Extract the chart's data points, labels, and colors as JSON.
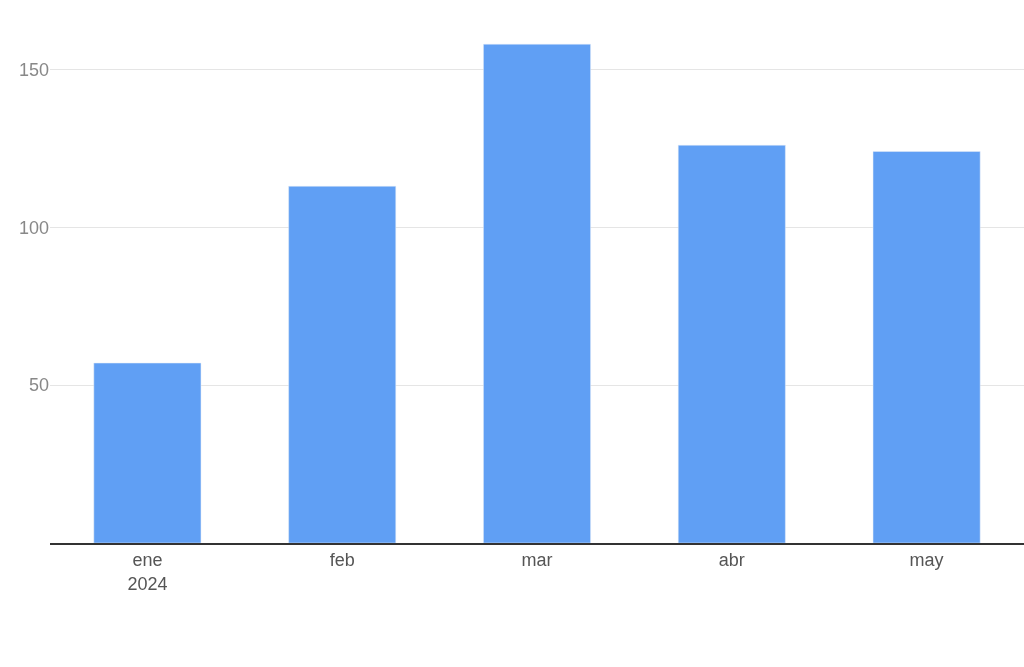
{
  "chart_data": {
    "type": "bar",
    "categories": [
      "ene\n2024",
      "feb",
      "mar",
      "abr",
      "may"
    ],
    "values": [
      57,
      113,
      158,
      126,
      124
    ],
    "color": "#609ff4",
    "ylim": [
      0,
      172
    ],
    "yticks": [
      50,
      100,
      150
    ],
    "grid": "y"
  }
}
